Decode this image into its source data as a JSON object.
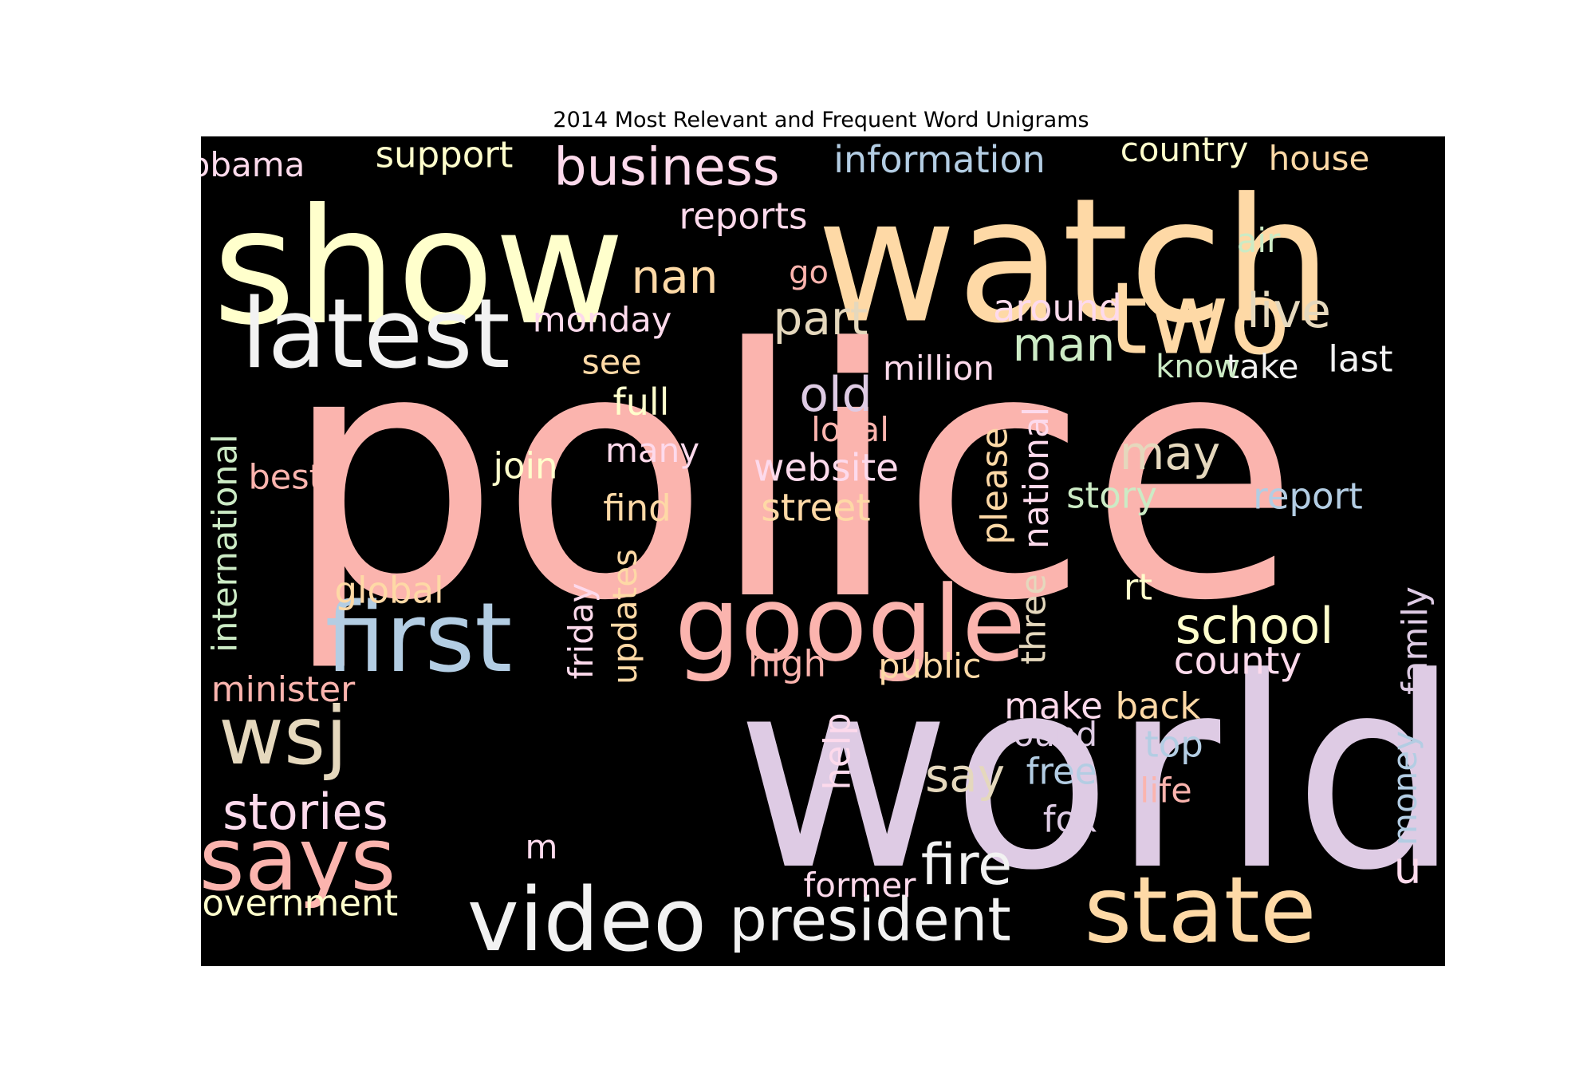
{
  "title": "2014 Most Relevant and Frequent Word Unigrams",
  "colors": {
    "background": "#000000",
    "title": "#000000"
  },
  "words": [
    {
      "text": "police",
      "color": "#fbb4ae"
    },
    {
      "text": "world",
      "color": "#decbe4"
    },
    {
      "text": "watch",
      "color": "#fed9a6"
    },
    {
      "text": "show",
      "color": "#ffffcc"
    },
    {
      "text": "latest",
      "color": "#f2f2f2"
    },
    {
      "text": "two",
      "color": "#fed9a6"
    },
    {
      "text": "google",
      "color": "#fbb4ae"
    },
    {
      "text": "first",
      "color": "#b3cde3"
    },
    {
      "text": "state",
      "color": "#fed9a6"
    },
    {
      "text": "video",
      "color": "#f2f2f2"
    },
    {
      "text": "says",
      "color": "#fbb4ae"
    },
    {
      "text": "wsj",
      "color": "#e5d8bd"
    },
    {
      "text": "president",
      "color": "#f2f2f2"
    },
    {
      "text": "business",
      "color": "#fddaec"
    },
    {
      "text": "stories",
      "color": "#fddaec"
    },
    {
      "text": "fire",
      "color": "#f2f2f2"
    },
    {
      "text": "school",
      "color": "#ffffcc"
    },
    {
      "text": "old",
      "color": "#decbe4"
    },
    {
      "text": "part",
      "color": "#e5d8bd"
    },
    {
      "text": "nan",
      "color": "#fed9a6"
    },
    {
      "text": "man",
      "color": "#ccebc5"
    },
    {
      "text": "live",
      "color": "#e5d8bd"
    },
    {
      "text": "may",
      "color": "#e5d8bd"
    },
    {
      "text": "say",
      "color": "#e5d8bd"
    },
    {
      "text": "government",
      "color": "#ffffcc"
    },
    {
      "text": "information",
      "color": "#b3cde3"
    },
    {
      "text": "reports",
      "color": "#fddaec"
    },
    {
      "text": "support",
      "color": "#ffffcc"
    },
    {
      "text": "obama",
      "color": "#fddaec"
    },
    {
      "text": "country",
      "color": "#ffffcc"
    },
    {
      "text": "house",
      "color": "#fed9a6"
    },
    {
      "text": "air",
      "color": "#ccebc5"
    },
    {
      "text": "go",
      "color": "#fbb4ae"
    },
    {
      "text": "monday",
      "color": "#fddaec"
    },
    {
      "text": "around",
      "color": "#fddaec"
    },
    {
      "text": "last",
      "color": "#f2f2f2"
    },
    {
      "text": "take",
      "color": "#f2f2f2"
    },
    {
      "text": "know",
      "color": "#ccebc5"
    },
    {
      "text": "million",
      "color": "#fddaec"
    },
    {
      "text": "see",
      "color": "#fed9a6"
    },
    {
      "text": "full",
      "color": "#ffffcc"
    },
    {
      "text": "local",
      "color": "#fbb4ae"
    },
    {
      "text": "website",
      "color": "#fddaec"
    },
    {
      "text": "street",
      "color": "#fed9a6"
    },
    {
      "text": "many",
      "color": "#fddaec"
    },
    {
      "text": "join",
      "color": "#ffffcc"
    },
    {
      "text": "best",
      "color": "#fbb4ae"
    },
    {
      "text": "find",
      "color": "#fed9a6"
    },
    {
      "text": "story",
      "color": "#ccebc5"
    },
    {
      "text": "report",
      "color": "#b3cde3"
    },
    {
      "text": "global",
      "color": "#fed9a6"
    },
    {
      "text": "rt",
      "color": "#ffffcc"
    },
    {
      "text": "county",
      "color": "#fddaec"
    },
    {
      "text": "high",
      "color": "#fbb4ae"
    },
    {
      "text": "public",
      "color": "#fed9a6"
    },
    {
      "text": "minister",
      "color": "#fbb4ae"
    },
    {
      "text": "make",
      "color": "#fddaec"
    },
    {
      "text": "back",
      "color": "#fed9a6"
    },
    {
      "text": "found",
      "color": "#decbe4"
    },
    {
      "text": "top",
      "color": "#b3cde3"
    },
    {
      "text": "free",
      "color": "#b3cde3"
    },
    {
      "text": "life",
      "color": "#fbb4ae"
    },
    {
      "text": "fox",
      "color": "#decbe4"
    },
    {
      "text": "m",
      "color": "#fddaec"
    },
    {
      "text": "u",
      "color": "#fddaec"
    },
    {
      "text": "former",
      "color": "#fddaec"
    },
    {
      "text": "international",
      "color": "#ccebc5"
    },
    {
      "text": "please",
      "color": "#fed9a6"
    },
    {
      "text": "national",
      "color": "#fddaec"
    },
    {
      "text": "three",
      "color": "#e5d8bd"
    },
    {
      "text": "updates",
      "color": "#fed9a6"
    },
    {
      "text": "friday",
      "color": "#fddaec"
    },
    {
      "text": "help",
      "color": "#fddaec"
    },
    {
      "text": "family",
      "color": "#decbe4"
    },
    {
      "text": "money",
      "color": "#b3cde3"
    }
  ]
}
